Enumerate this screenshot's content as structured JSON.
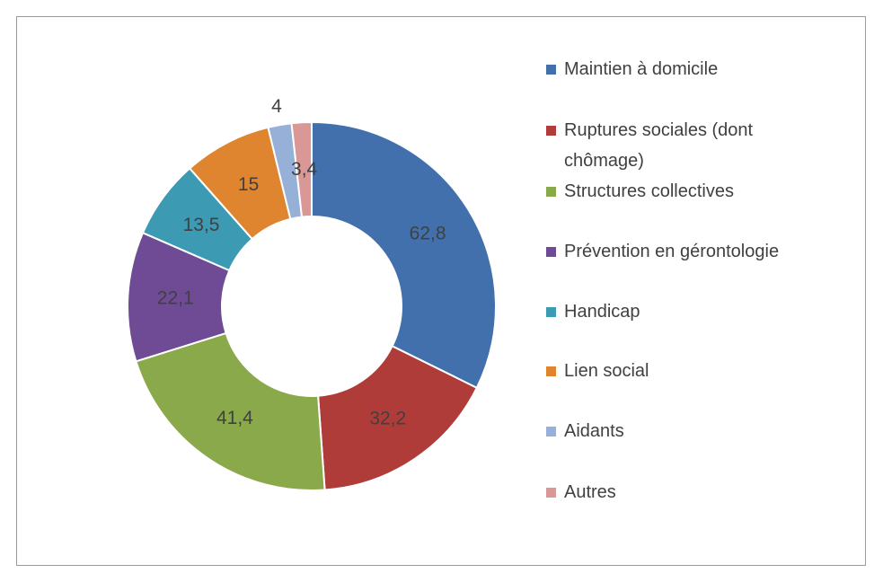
{
  "chart_data": {
    "type": "donut",
    "categories": [
      "Maintien à domicile",
      "Ruptures sociales (dont chômage)",
      "Structures collectives",
      "Prévention en gérontologie",
      "Handicap",
      "Lien social",
      "Aidants",
      "Autres"
    ],
    "values": [
      62.8,
      32.2,
      41.4,
      22.1,
      13.5,
      15,
      4,
      3.4
    ],
    "value_labels": [
      "62,8",
      "32,2",
      "41,4",
      "22,1",
      "13,5",
      "15",
      "4",
      "3,4"
    ],
    "colors": [
      "#4170ad",
      "#b03c39",
      "#89a94a",
      "#6e4b94",
      "#3c9ab3",
      "#e0852f",
      "#97b0d8",
      "#d99896"
    ],
    "legend": "right"
  }
}
